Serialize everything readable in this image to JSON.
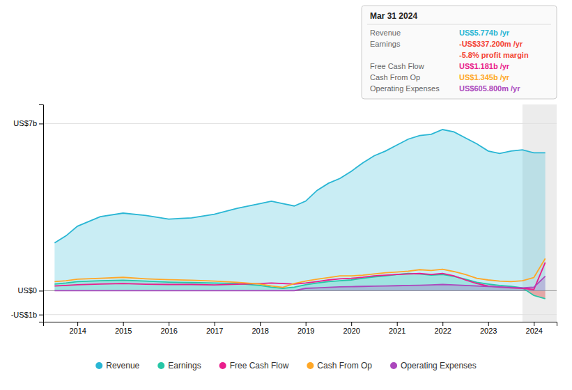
{
  "chart_data": {
    "type": "area",
    "subtitle": "Mar 31 2024",
    "x": [
      2013.5,
      2013.75,
      2014.0,
      2014.5,
      2015.0,
      2015.5,
      2016.0,
      2016.5,
      2017.0,
      2017.5,
      2018.0,
      2018.25,
      2018.5,
      2018.75,
      2019.0,
      2019.25,
      2019.5,
      2019.75,
      2020.0,
      2020.25,
      2020.5,
      2020.75,
      2021.0,
      2021.25,
      2021.5,
      2021.75,
      2022.0,
      2022.25,
      2022.5,
      2022.75,
      2023.0,
      2023.25,
      2023.5,
      2023.75,
      2024.0,
      2024.25
    ],
    "xlim": [
      2013.25,
      2024.5
    ],
    "xticks": [
      2014,
      2015,
      2016,
      2017,
      2018,
      2019,
      2020,
      2021,
      2022,
      2023,
      2024
    ],
    "ylim": [
      -1.3,
      7.8
    ],
    "yticks": [
      {
        "value": -1,
        "label": "-US$1b"
      },
      {
        "value": 0,
        "label": "US$0"
      },
      {
        "value": 7,
        "label": "US$7b"
      }
    ],
    "grid": true,
    "legend": "bottom",
    "shaded_x": [
      2023.75,
      2024.5
    ],
    "series": [
      {
        "name": "Revenue",
        "type": "area",
        "color": "#29b6d4",
        "values": [
          2.0,
          2.3,
          2.7,
          3.1,
          3.25,
          3.15,
          3.0,
          3.05,
          3.2,
          3.45,
          3.65,
          3.75,
          3.65,
          3.55,
          3.75,
          4.2,
          4.5,
          4.7,
          5.0,
          5.35,
          5.65,
          5.85,
          6.1,
          6.35,
          6.5,
          6.55,
          6.75,
          6.65,
          6.4,
          6.15,
          5.85,
          5.75,
          5.85,
          5.9,
          5.774,
          5.774
        ]
      },
      {
        "name": "Earnings",
        "type": "area",
        "color": "#26c6a6",
        "values": [
          0.28,
          0.32,
          0.38,
          0.42,
          0.44,
          0.4,
          0.36,
          0.34,
          0.32,
          0.3,
          0.22,
          0.15,
          0.1,
          0.15,
          0.25,
          0.32,
          0.38,
          0.42,
          0.45,
          0.52,
          0.58,
          0.62,
          0.68,
          0.72,
          0.7,
          0.65,
          0.68,
          0.6,
          0.48,
          0.35,
          0.28,
          0.22,
          0.18,
          0.12,
          -0.2,
          -0.337
        ]
      },
      {
        "name": "Free Cash Flow",
        "type": "line",
        "color": "#e91e8c",
        "values": [
          0.2,
          0.22,
          0.25,
          0.28,
          0.3,
          0.27,
          0.26,
          0.26,
          0.24,
          0.27,
          0.3,
          0.32,
          0.3,
          0.28,
          0.32,
          0.38,
          0.45,
          0.5,
          0.52,
          0.56,
          0.62,
          0.65,
          0.68,
          0.7,
          0.72,
          0.68,
          0.72,
          0.62,
          0.45,
          0.3,
          0.2,
          0.15,
          0.12,
          0.1,
          0.05,
          1.181
        ]
      },
      {
        "name": "Cash From Op",
        "type": "line",
        "color": "#ffa726",
        "values": [
          0.38,
          0.42,
          0.48,
          0.52,
          0.56,
          0.5,
          0.46,
          0.44,
          0.4,
          0.35,
          0.28,
          0.2,
          0.14,
          0.3,
          0.4,
          0.48,
          0.55,
          0.62,
          0.62,
          0.65,
          0.7,
          0.75,
          0.78,
          0.82,
          0.88,
          0.85,
          0.9,
          0.8,
          0.68,
          0.52,
          0.45,
          0.4,
          0.38,
          0.42,
          0.55,
          1.345
        ]
      },
      {
        "name": "Operating Expenses",
        "type": "area",
        "color": "#ab47bc",
        "values": [
          0.0,
          0.0,
          0.0,
          0.0,
          0.0,
          0.0,
          0.0,
          0.0,
          0.0,
          0.0,
          0.0,
          0.0,
          0.0,
          0.0,
          0.1,
          0.12,
          0.14,
          0.16,
          0.17,
          0.18,
          0.19,
          0.2,
          0.21,
          0.22,
          0.23,
          0.24,
          0.26,
          0.24,
          0.22,
          0.2,
          0.18,
          0.16,
          0.14,
          0.12,
          0.15,
          0.606
        ]
      }
    ],
    "annotations": [
      {
        "label": "Revenue",
        "text": "US$5.774b /yr",
        "color": "#29b6d4"
      },
      {
        "label": "Earnings",
        "text": "-US$337.200m /yr",
        "color": "#f44336"
      },
      {
        "text": "-5.8% profit margin",
        "color": "#f44336"
      },
      {
        "label": "Free Cash Flow",
        "text": "US$1.181b /yr",
        "color": "#e91e8c"
      },
      {
        "label": "Cash From Op",
        "text": "US$1.345b /yr",
        "color": "#ffa726"
      },
      {
        "label": "Operating Expenses",
        "text": "US$605.800m /yr",
        "color": "#ab47bc"
      }
    ]
  }
}
